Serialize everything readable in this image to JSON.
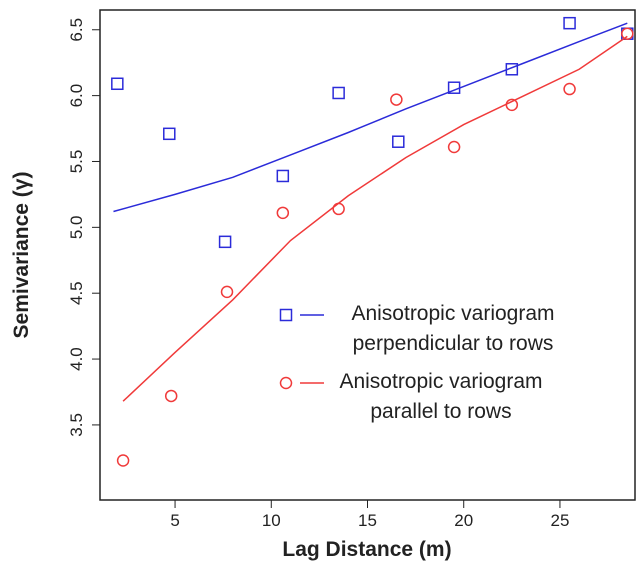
{
  "chart_data": {
    "type": "scatter",
    "x_label": "Lag Distance (m)",
    "y_label": "Semivariance (γ)",
    "xlim": [
      1.1,
      28.9
    ],
    "ylim": [
      2.93,
      6.65
    ],
    "xticks": [
      5,
      10,
      15,
      20,
      25
    ],
    "yticks": [
      3.5,
      {
        "value": 4,
        "label": "4.0"
      },
      4.5,
      {
        "value": 5,
        "label": "5.0"
      },
      5.5,
      {
        "value": 6,
        "label": "6.0"
      },
      6.5
    ],
    "series": [
      {
        "name": "Anisotropic variogram perpendicular to rows",
        "color": "#2b2bd9",
        "marker": "square",
        "x": [
          2.0,
          4.7,
          7.6,
          10.6,
          13.5,
          16.6,
          19.5,
          22.5,
          25.5,
          28.5
        ],
        "values": [
          6.09,
          5.71,
          4.89,
          5.39,
          6.02,
          5.65,
          6.06,
          6.2,
          6.55,
          6.47
        ],
        "fit": {
          "x": [
            1.8,
            5,
            8,
            11,
            14,
            17,
            20,
            23,
            26,
            28.5
          ],
          "values": [
            5.12,
            5.25,
            5.38,
            5.55,
            5.72,
            5.9,
            6.07,
            6.24,
            6.41,
            6.55
          ]
        }
      },
      {
        "name": "Anisotropic variogram parallel to rows",
        "color": "#f03a3a",
        "marker": "circle",
        "x": [
          2.3,
          4.8,
          7.7,
          10.6,
          13.5,
          16.5,
          19.5,
          22.5,
          25.5,
          28.5
        ],
        "values": [
          3.23,
          3.72,
          4.51,
          5.11,
          5.14,
          5.97,
          5.61,
          5.93,
          6.05,
          6.47
        ],
        "fit": {
          "x": [
            2.3,
            5,
            8,
            11,
            14,
            17,
            20,
            23,
            26,
            28.5
          ],
          "values": [
            3.68,
            4.05,
            4.45,
            4.9,
            5.24,
            5.53,
            5.78,
            5.99,
            6.2,
            6.45
          ]
        }
      }
    ]
  }
}
